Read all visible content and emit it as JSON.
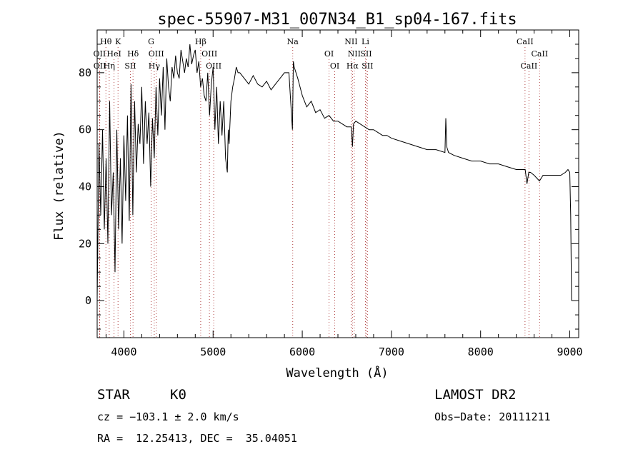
{
  "chart_data": {
    "type": "line",
    "title": "spec-55907-M31_007N34_B1_sp04-167.fits",
    "xlabel": "Wavelength (Å)",
    "ylabel": "Flux (relative)",
    "xlim": [
      3700,
      9100
    ],
    "ylim": [
      -13,
      95
    ],
    "x_ticks": [
      4000,
      5000,
      6000,
      7000,
      8000,
      9000
    ],
    "y_ticks": [
      0,
      20,
      40,
      60,
      80
    ],
    "grid": false,
    "series": [
      {
        "x": [
          3700,
          3720,
          3740,
          3760,
          3780,
          3800,
          3820,
          3840,
          3860,
          3880,
          3900,
          3920,
          3940,
          3960,
          3980,
          4000,
          4020,
          4040,
          4060,
          4080,
          4100,
          4120,
          4140,
          4160,
          4180,
          4200,
          4220,
          4240,
          4260,
          4280,
          4300,
          4320,
          4340,
          4360,
          4380,
          4400,
          4420,
          4440,
          4460,
          4480,
          4500,
          4520,
          4540,
          4560,
          4580,
          4600,
          4620,
          4640,
          4660,
          4680,
          4700,
          4720,
          4740,
          4760,
          4780,
          4800,
          4820,
          4840,
          4860,
          4880,
          4900,
          4920,
          4940,
          4960,
          4980,
          5000,
          5020,
          5040,
          5060,
          5080,
          5100,
          5120,
          5140,
          5160,
          5170,
          5180,
          5200,
          5220,
          5240,
          5260,
          5280,
          5300,
          5350,
          5400,
          5450,
          5500,
          5550,
          5600,
          5650,
          5700,
          5750,
          5800,
          5850,
          5890,
          5900,
          5910,
          5950,
          6000,
          6050,
          6100,
          6150,
          6200,
          6250,
          6300,
          6350,
          6400,
          6450,
          6500,
          6550,
          6563,
          6575,
          6600,
          6650,
          6700,
          6750,
          6800,
          6850,
          6900,
          6950,
          7000,
          7100,
          7200,
          7300,
          7400,
          7500,
          7600,
          7610,
          7620,
          7640,
          7700,
          7800,
          7900,
          8000,
          8100,
          8200,
          8300,
          8400,
          8450,
          8500,
          8520,
          8540,
          8560,
          8600,
          8660,
          8700,
          8800,
          8900,
          8950,
          8980,
          9000,
          9010,
          9020
        ],
        "y": [
          0,
          55,
          30,
          60,
          25,
          50,
          20,
          70,
          30,
          45,
          10,
          60,
          25,
          50,
          20,
          58,
          35,
          65,
          28,
          76,
          30,
          70,
          45,
          62,
          55,
          75,
          48,
          70,
          55,
          66,
          40,
          64,
          50,
          75,
          58,
          78,
          65,
          82,
          60,
          85,
          75,
          70,
          82,
          78,
          86,
          80,
          78,
          88,
          84,
          80,
          85,
          82,
          90,
          83,
          86,
          88,
          80,
          84,
          75,
          78,
          72,
          70,
          80,
          65,
          76,
          82,
          60,
          75,
          55,
          70,
          58,
          70,
          50,
          45,
          60,
          55,
          70,
          75,
          78,
          82,
          80,
          80,
          78,
          76,
          79,
          76,
          75,
          77,
          74,
          76,
          78,
          80,
          80,
          60,
          84,
          82,
          78,
          72,
          68,
          70,
          66,
          67,
          64,
          65,
          63,
          63,
          62,
          61,
          61,
          54,
          62,
          63,
          62,
          61,
          60,
          60,
          59,
          58,
          58,
          57,
          56,
          55,
          54,
          53,
          53,
          52,
          64,
          54,
          52,
          51,
          50,
          49,
          49,
          48,
          48,
          47,
          46,
          46,
          46,
          41,
          45,
          45,
          44,
          42,
          44,
          44,
          44,
          45,
          46,
          45,
          30,
          0
        ]
      }
    ],
    "line_markers": [
      {
        "label": "Hθ",
        "x": 3798,
        "row": 1
      },
      {
        "label": "OII",
        "x": 3727,
        "row": 2
      },
      {
        "label": "OII",
        "x": 3729,
        "row": 3
      },
      {
        "label": "K",
        "x": 3934,
        "row": 1
      },
      {
        "label": "HeI",
        "x": 3889,
        "row": 2
      },
      {
        "label": "Hη",
        "x": 3835,
        "row": 3
      },
      {
        "label": "Hδ",
        "x": 4102,
        "row": 2
      },
      {
        "label": "SII",
        "x": 4072,
        "row": 3
      },
      {
        "label": "G",
        "x": 4305,
        "row": 1
      },
      {
        "label": "OIII",
        "x": 4363,
        "row": 2
      },
      {
        "label": "Hγ",
        "x": 4340,
        "row": 3
      },
      {
        "label": "Hβ",
        "x": 4861,
        "row": 1
      },
      {
        "label": "OIII",
        "x": 4959,
        "row": 2
      },
      {
        "label": "OIII",
        "x": 5007,
        "row": 3
      },
      {
        "label": "Na",
        "x": 5893,
        "row": 1
      },
      {
        "label": "OI",
        "x": 6300,
        "row": 2
      },
      {
        "label": "OI",
        "x": 6364,
        "row": 3
      },
      {
        "label": "NII",
        "x": 6548,
        "row": 1
      },
      {
        "label": "NII",
        "x": 6583,
        "row": 2
      },
      {
        "label": "Hα",
        "x": 6563,
        "row": 3
      },
      {
        "label": "Li",
        "x": 6708,
        "row": 1
      },
      {
        "label": "SII",
        "x": 6716,
        "row": 2
      },
      {
        "label": "SII",
        "x": 6731,
        "row": 3
      },
      {
        "label": "CaII",
        "x": 8498,
        "row": 1
      },
      {
        "label": "CaII",
        "x": 8662,
        "row": 2
      },
      {
        "label": "CaII",
        "x": 8542,
        "row": 3
      }
    ]
  },
  "info": {
    "class_label": "STAR",
    "subclass_label": "K0",
    "survey_label": "LAMOST DR2",
    "cz_text": "cz = −103.1 ± 2.0 km/s",
    "obs_date_text": "Obs−Date: 20111211",
    "coords_text": "RA =  12.25413, DEC =  35.04051"
  }
}
